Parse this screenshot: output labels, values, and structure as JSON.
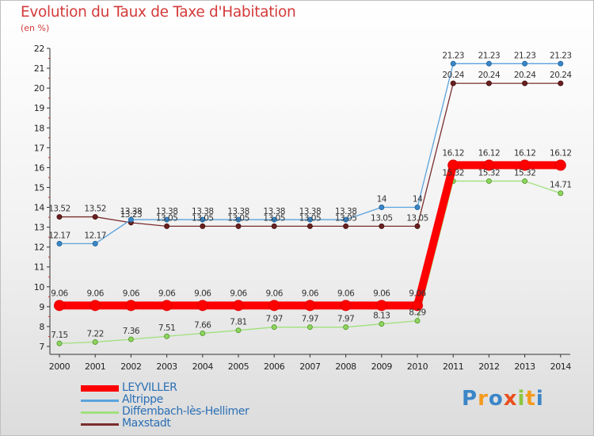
{
  "chart_data": {
    "type": "line",
    "title": "Evolution du Taux de Taxe d'Habitation",
    "subtitle": "(en %)",
    "x": [
      "2000",
      "2001",
      "2002",
      "2003",
      "2004",
      "2005",
      "2006",
      "2007",
      "2008",
      "2009",
      "2010",
      "2011",
      "2012",
      "2013",
      "2014"
    ],
    "ylim": [
      7,
      22
    ],
    "yticks": [
      7,
      8,
      9,
      10,
      11,
      12,
      13,
      14,
      15,
      16,
      17,
      18,
      19,
      20,
      21,
      22
    ],
    "grid": false,
    "legend_position": "bottom-left",
    "series": [
      {
        "name": "LEYVILLER",
        "color": "#ff0000",
        "values": [
          9.06,
          9.06,
          9.06,
          9.06,
          9.06,
          9.06,
          9.06,
          9.06,
          9.06,
          9.06,
          9.06,
          16.12,
          16.12,
          16.12,
          16.12
        ],
        "labels": [
          "9.06",
          "9.06",
          "9.06",
          "9.06",
          "9.06",
          "9.06",
          "9.06",
          "9.06",
          "9.06",
          "9.06",
          "9.06",
          "16.12",
          "16.12",
          "16.12",
          "16.12"
        ]
      },
      {
        "name": "Altrippe",
        "color": "#5ba3dc",
        "values": [
          12.17,
          12.17,
          13.38,
          13.38,
          13.38,
          13.38,
          13.38,
          13.38,
          13.38,
          14,
          14,
          21.23,
          21.23,
          21.23,
          21.23
        ],
        "labels": [
          "12.17",
          "12.17",
          "13.38",
          "13.38",
          "13.38",
          "13.38",
          "13.38",
          "13.38",
          "13.38",
          "14",
          "14",
          "21.23",
          "21.23",
          "21.23",
          "21.23"
        ]
      },
      {
        "name": "Diffembach-lès-Hellimer",
        "color": "#9fe07c",
        "values": [
          7.15,
          7.22,
          7.36,
          7.51,
          7.66,
          7.81,
          7.97,
          7.97,
          7.97,
          8.13,
          8.29,
          15.32,
          15.32,
          15.32,
          14.71
        ],
        "labels": [
          "7.15",
          "7.22",
          "7.36",
          "7.51",
          "7.66",
          "7.81",
          "7.97",
          "7.97",
          "7.97",
          "8.13",
          "8.29",
          "15.32",
          "15.32",
          "15.32",
          "14.71"
        ]
      },
      {
        "name": "Maxstadt",
        "color": "#7b2d2d",
        "values": [
          13.52,
          13.52,
          13.23,
          13.05,
          13.05,
          13.05,
          13.05,
          13.05,
          13.05,
          13.05,
          13.05,
          20.24,
          20.24,
          20.24,
          20.24
        ],
        "labels": [
          "13.52",
          "13.52",
          "13.23",
          "13.05",
          "13.05",
          "13.05",
          "13.05",
          "13.05",
          "13.05",
          "13.05",
          "13.05",
          "20.24",
          "20.24",
          "20.24",
          "20.24"
        ]
      }
    ]
  },
  "brand": {
    "logo": "Proxiti"
  }
}
